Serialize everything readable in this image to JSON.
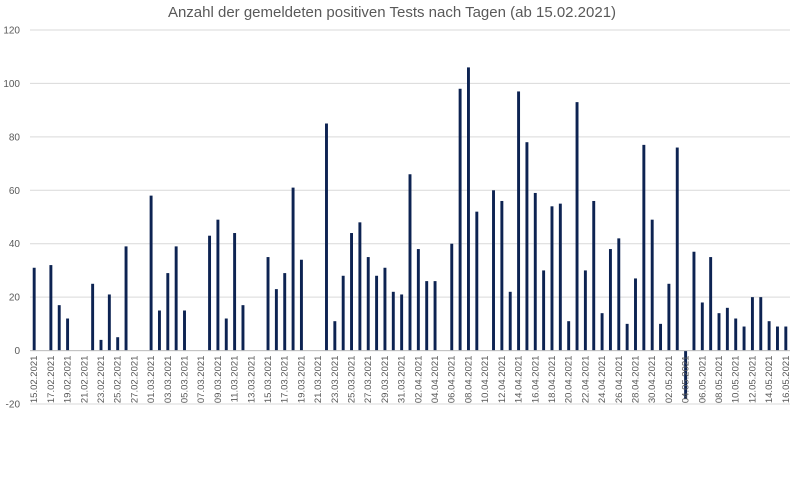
{
  "chart_data": {
    "type": "bar",
    "title": "Anzahl der gemeldeten positiven Tests nach Tagen (ab 15.02.2021)",
    "xlabel": "",
    "ylabel": "",
    "ylim": [
      -20,
      120
    ],
    "yticks": [
      -20,
      0,
      20,
      40,
      60,
      80,
      100,
      120
    ],
    "grid": true,
    "legend": "none",
    "bar_color": "#0d2352",
    "start_date": "15.02.2021",
    "categories": [
      "15.02.2021",
      "16.02.2021",
      "17.02.2021",
      "18.02.2021",
      "19.02.2021",
      "20.02.2021",
      "21.02.2021",
      "22.02.2021",
      "23.02.2021",
      "24.02.2021",
      "25.02.2021",
      "26.02.2021",
      "27.02.2021",
      "28.02.2021",
      "01.03.2021",
      "02.03.2021",
      "03.03.2021",
      "04.03.2021",
      "05.03.2021",
      "06.03.2021",
      "07.03.2021",
      "08.03.2021",
      "09.03.2021",
      "10.03.2021",
      "11.03.2021",
      "12.03.2021",
      "13.03.2021",
      "14.03.2021",
      "15.03.2021",
      "16.03.2021",
      "17.03.2021",
      "18.03.2021",
      "19.03.2021",
      "20.03.2021",
      "21.03.2021",
      "22.03.2021",
      "23.03.2021",
      "24.03.2021",
      "25.03.2021",
      "26.03.2021",
      "27.03.2021",
      "28.03.2021",
      "29.03.2021",
      "30.03.2021",
      "31.03.2021",
      "01.04.2021",
      "02.04.2021",
      "03.04.2021",
      "04.04.2021",
      "05.04.2021",
      "06.04.2021",
      "07.04.2021",
      "08.04.2021",
      "09.04.2021",
      "10.04.2021",
      "11.04.2021",
      "12.04.2021",
      "13.04.2021",
      "14.04.2021",
      "15.04.2021",
      "16.04.2021",
      "17.04.2021",
      "18.04.2021",
      "19.04.2021",
      "20.04.2021",
      "21.04.2021",
      "22.04.2021",
      "23.04.2021",
      "24.04.2021",
      "25.04.2021",
      "26.04.2021",
      "27.04.2021",
      "28.04.2021",
      "29.04.2021",
      "30.04.2021",
      "01.05.2021",
      "02.05.2021",
      "03.05.2021",
      "04.05.2021",
      "05.05.2021",
      "06.05.2021",
      "07.05.2021",
      "08.05.2021",
      "09.05.2021",
      "10.05.2021",
      "11.05.2021",
      "12.05.2021",
      "13.05.2021",
      "14.05.2021",
      "15.05.2021",
      "16.05.2021"
    ],
    "values": [
      31,
      0,
      32,
      17,
      12,
      0,
      0,
      25,
      4,
      21,
      5,
      39,
      0,
      0,
      58,
      15,
      29,
      39,
      15,
      0,
      0,
      43,
      49,
      12,
      44,
      17,
      0,
      0,
      35,
      23,
      29,
      61,
      34,
      0,
      0,
      85,
      11,
      28,
      44,
      48,
      35,
      28,
      31,
      22,
      21,
      66,
      38,
      26,
      26,
      0,
      40,
      98,
      106,
      52,
      0,
      60,
      56,
      22,
      97,
      78,
      59,
      30,
      54,
      55,
      11,
      93,
      30,
      56,
      14,
      38,
      42,
      10,
      27,
      77,
      49,
      10,
      25,
      76,
      -18,
      37,
      18,
      35,
      14,
      16,
      12,
      9,
      20,
      20,
      11,
      9,
      9
    ]
  }
}
